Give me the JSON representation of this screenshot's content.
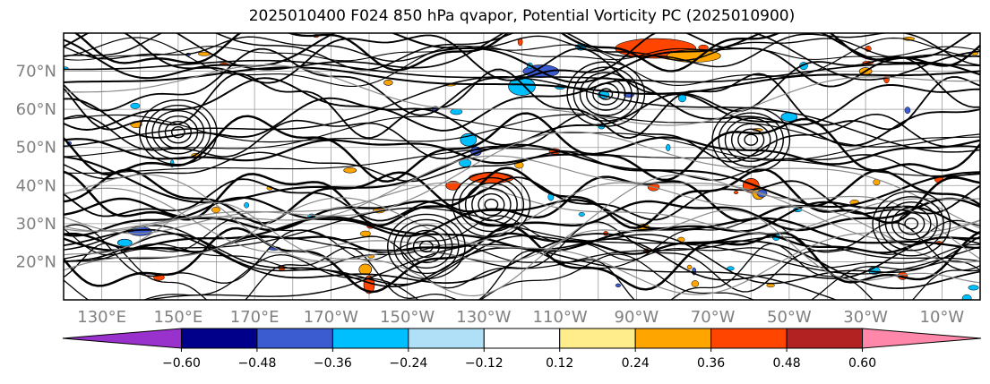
{
  "chart_data": {
    "type": "heatmap",
    "title": "2025010400 F024 850 hPa qvapor, Potential Vorticity PC (2025010900)",
    "map": {
      "lat_labels": [
        "20°N",
        "30°N",
        "40°N",
        "50°N",
        "60°N",
        "70°N"
      ],
      "lat_values": [
        20,
        30,
        40,
        50,
        60,
        70
      ],
      "lon_labels": [
        "130°E",
        "150°E",
        "170°E",
        "170°W",
        "150°W",
        "130°W",
        "110°W",
        "90°W",
        "70°W",
        "50°W",
        "30°W",
        "10°W"
      ],
      "lon_values": [
        130,
        150,
        170,
        -170,
        -150,
        -130,
        -110,
        -90,
        -70,
        -50,
        -30,
        -10
      ],
      "lat_range": [
        10,
        80
      ],
      "lon_range": [
        120,
        360
      ],
      "gridlines": true,
      "contours": "black PV contours and gray isolines over a white background"
    },
    "colorbar": {
      "orientation": "horizontal",
      "extend": "both",
      "boundaries": [
        -0.6,
        -0.48,
        -0.36,
        -0.24,
        -0.12,
        0.12,
        0.24,
        0.36,
        0.48,
        0.6
      ],
      "tick_labels": [
        "−0.60",
        "−0.48",
        "−0.36",
        "−0.24",
        "−0.12",
        "0.12",
        "0.24",
        "0.36",
        "0.48",
        "0.60"
      ],
      "colors": [
        "#9932cc",
        "#00008b",
        "#3b5bd1",
        "#00bfff",
        "#afe0f8",
        "#ffffff",
        "#ffec8b",
        "#ffa500",
        "#ff4500",
        "#b22222",
        "#ff88aa"
      ]
    }
  }
}
